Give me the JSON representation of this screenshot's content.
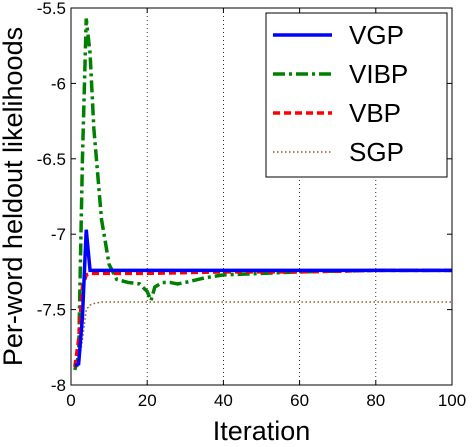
{
  "chart_data": {
    "type": "line",
    "xlabel": "Iteration",
    "ylabel": "Per-word heldout likelihoods",
    "xlim": [
      0,
      100
    ],
    "ylim": [
      -8,
      -5.5
    ],
    "xticks": [
      0,
      20,
      40,
      60,
      80,
      100
    ],
    "yticks": [
      -8,
      -7.5,
      -7,
      -6.5,
      -6,
      -5.5
    ],
    "xtick_labels": [
      "0",
      "20",
      "40",
      "60",
      "80",
      "100"
    ],
    "ytick_labels": [
      "-8",
      "-7.5",
      "-7",
      "-6.5",
      "-6",
      "-5.5"
    ],
    "grid": "vertical-dotted",
    "legend_position": "top-right",
    "series": [
      {
        "name": "VGP",
        "color": "#0000ff",
        "style": "solid",
        "x": [
          1,
          2,
          3,
          4,
          5,
          6,
          10,
          20,
          40,
          60,
          80,
          100
        ],
        "y": [
          -7.87,
          -7.86,
          -7.55,
          -6.97,
          -7.24,
          -7.24,
          -7.24,
          -7.24,
          -7.24,
          -7.24,
          -7.24,
          -7.24
        ]
      },
      {
        "name": "VIBP",
        "color": "#008000",
        "style": "dashdot",
        "x": [
          1,
          2,
          3,
          4,
          5,
          6,
          8,
          10,
          12,
          15,
          18,
          20,
          21,
          22,
          24,
          26,
          28,
          30,
          35,
          40,
          50,
          60,
          80,
          100
        ],
        "y": [
          -7.9,
          -7.8,
          -6.5,
          -5.57,
          -5.8,
          -6.3,
          -6.9,
          -7.2,
          -7.3,
          -7.32,
          -7.33,
          -7.38,
          -7.44,
          -7.35,
          -7.32,
          -7.32,
          -7.33,
          -7.32,
          -7.29,
          -7.27,
          -7.26,
          -7.25,
          -7.24,
          -7.24
        ]
      },
      {
        "name": "VBP",
        "color": "#ff0000",
        "style": "dashed",
        "x": [
          1,
          2,
          3,
          4,
          5,
          6,
          10,
          20,
          40,
          60,
          80,
          100
        ],
        "y": [
          -7.88,
          -7.7,
          -7.35,
          -7.27,
          -7.26,
          -7.26,
          -7.26,
          -7.26,
          -7.25,
          -7.25,
          -7.24,
          -7.24
        ]
      },
      {
        "name": "SGP",
        "color": "#a0522d",
        "style": "dotted",
        "x": [
          1,
          2,
          3,
          4,
          5,
          6,
          8,
          10,
          20,
          40,
          60,
          80,
          100
        ],
        "y": [
          -7.9,
          -7.87,
          -7.7,
          -7.5,
          -7.47,
          -7.46,
          -7.45,
          -7.45,
          -7.45,
          -7.45,
          -7.45,
          -7.45,
          -7.45
        ]
      }
    ]
  }
}
